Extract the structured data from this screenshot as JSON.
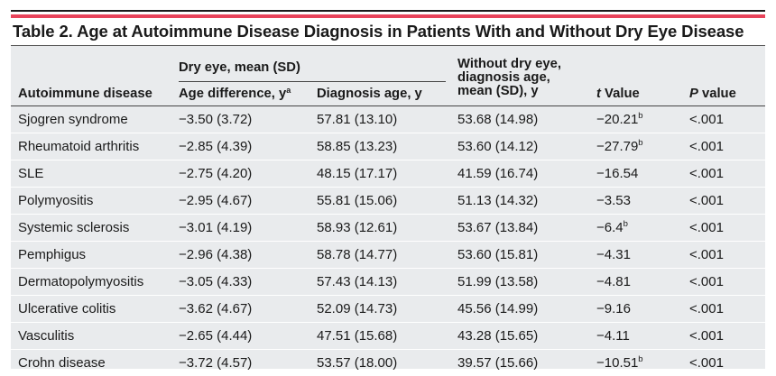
{
  "title": "Table 2. Age at Autoimmune Disease Diagnosis in Patients With and Without Dry Eye Disease",
  "headers": {
    "disease": "Autoimmune disease",
    "dry_eye_group": "Dry eye, mean (SD)",
    "age_difference": "Age difference, y",
    "age_difference_sup": "a",
    "diagnosis_age": "Diagnosis age, y",
    "without_line1": "Without dry eye,",
    "without_line2": "diagnosis age,",
    "without_line3": "mean (SD), y",
    "t_value_italic": "t",
    "t_value_rest": " Value",
    "p_value_italic": "P",
    "p_value_rest": " value"
  },
  "rows": [
    {
      "disease": "Sjogren syndrome",
      "age_diff": "−3.50 (3.72)",
      "dx_age": "57.81 (13.10)",
      "without": "53.68 (14.98)",
      "t": "−20.21",
      "t_sup": "b",
      "p": "<.001"
    },
    {
      "disease": "Rheumatoid arthritis",
      "age_diff": "−2.85 (4.39)",
      "dx_age": "58.85 (13.23)",
      "without": "53.60 (14.12)",
      "t": "−27.79",
      "t_sup": "b",
      "p": "<.001"
    },
    {
      "disease": "SLE",
      "age_diff": "−2.75 (4.20)",
      "dx_age": "48.15 (17.17)",
      "without": "41.59 (16.74)",
      "t": "−16.54",
      "t_sup": "",
      "p": "<.001"
    },
    {
      "disease": "Polymyositis",
      "age_diff": "−2.95 (4.67)",
      "dx_age": "55.81 (15.06)",
      "without": "51.13 (14.32)",
      "t": "−3.53",
      "t_sup": "",
      "p": "<.001"
    },
    {
      "disease": "Systemic sclerosis",
      "age_diff": "−3.01 (4.19)",
      "dx_age": "58.93 (12.61)",
      "without": "53.67 (13.84)",
      "t": "−6.4",
      "t_sup": "b",
      "p": "<.001"
    },
    {
      "disease": "Pemphigus",
      "age_diff": "−2.96 (4.38)",
      "dx_age": "58.78 (14.77)",
      "without": "53.60 (15.81)",
      "t": "−4.31",
      "t_sup": "",
      "p": "<.001"
    },
    {
      "disease": "Dermatopolymyositis",
      "age_diff": "−3.05 (4.33)",
      "dx_age": "57.43 (14.13)",
      "without": "51.99 (13.58)",
      "t": "−4.81",
      "t_sup": "",
      "p": "<.001"
    },
    {
      "disease": "Ulcerative colitis",
      "age_diff": "−3.62 (4.67)",
      "dx_age": "52.09 (14.73)",
      "without": "45.56 (14.99)",
      "t": "−9.16",
      "t_sup": "",
      "p": "<.001"
    },
    {
      "disease": "Vasculitis",
      "age_diff": "−2.65 (4.44)",
      "dx_age": "47.51 (15.68)",
      "without": "43.28 (15.65)",
      "t": "−4.11",
      "t_sup": "",
      "p": "<.001"
    },
    {
      "disease": "Crohn disease",
      "age_diff": "−3.72 (4.57)",
      "dx_age": "53.57 (18.00)",
      "without": "39.57 (15.66)",
      "t": "−10.51",
      "t_sup": "b",
      "p": "<.001"
    }
  ]
}
